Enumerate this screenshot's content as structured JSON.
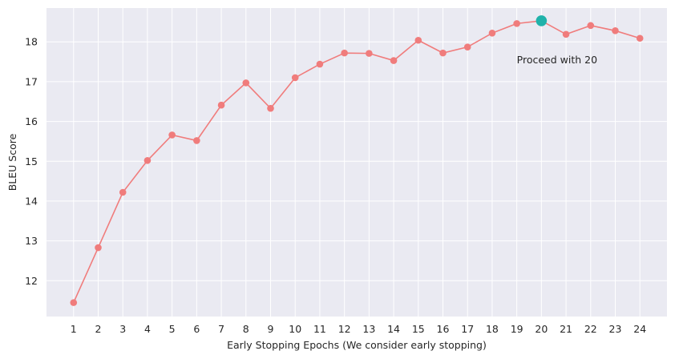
{
  "chart_data": {
    "type": "line",
    "title": "",
    "xlabel": "Early Stopping Epochs (We consider early stopping)",
    "ylabel": "BLEU Score",
    "x": [
      1,
      2,
      3,
      4,
      5,
      6,
      7,
      8,
      9,
      10,
      11,
      12,
      13,
      14,
      15,
      16,
      17,
      18,
      19,
      20,
      21,
      22,
      23,
      24
    ],
    "xticks": [
      "1",
      "2",
      "3",
      "4",
      "5",
      "6",
      "7",
      "8",
      "9",
      "10",
      "11",
      "12",
      "13",
      "14",
      "15",
      "16",
      "17",
      "18",
      "19",
      "20",
      "21",
      "22",
      "23",
      "24"
    ],
    "yticks": [
      "12",
      "13",
      "14",
      "15",
      "16",
      "17",
      "18"
    ],
    "xlim": [
      -0.1,
      25.1
    ],
    "ylim": [
      11.1,
      18.85
    ],
    "grid": true,
    "series": [
      {
        "name": "",
        "color": "#f07c7c",
        "values": [
          11.45,
          12.83,
          14.22,
          15.02,
          15.66,
          15.52,
          16.41,
          16.97,
          16.33,
          17.1,
          17.44,
          17.72,
          17.71,
          17.53,
          18.04,
          17.72,
          17.87,
          18.22,
          18.46,
          18.53,
          18.19,
          18.41,
          18.28,
          18.09
        ]
      }
    ],
    "highlight": {
      "x": 20,
      "y": 18.53,
      "color": "#20b2aa"
    },
    "annotation": {
      "text": "Proceed with 20",
      "x": 19,
      "y": 17.55
    }
  },
  "colors": {
    "plot_background": "#eaeaf2",
    "grid": "#ffffff"
  }
}
